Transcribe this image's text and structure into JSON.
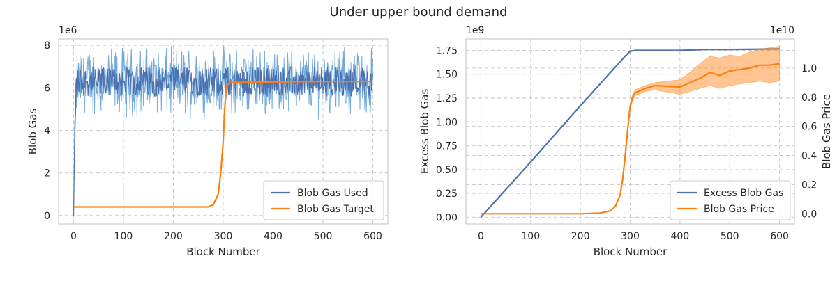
{
  "figure": {
    "suptitle": "Under upper bound demand"
  },
  "colors": {
    "blue": "#4c72b0",
    "orange": "#ff7f0e",
    "light_blue": "#5b9bd5",
    "grid": "#cccccc",
    "spine": "#cccccc"
  },
  "chart_data": [
    {
      "type": "line",
      "xlabel": "Block Number",
      "ylabel": "Blob Gas",
      "y_offset_label": "1e6",
      "xlim": [
        -30,
        630
      ],
      "ylim": [
        -0.4,
        8.3
      ],
      "xticks": [
        0,
        100,
        200,
        300,
        400,
        500,
        600
      ],
      "yticks": [
        0,
        2,
        4,
        6,
        8
      ],
      "legend": "lower-right",
      "grid": true,
      "series": [
        {
          "name": "Blob Gas Used",
          "color": "#4c72b0",
          "note_band": "noisy band around mean 6.3 (range approx 4.8 to 7.9) from block 0 to 600",
          "x": [
            0,
            2,
            5,
            10,
            20,
            50,
            100,
            150,
            200,
            250,
            300,
            350,
            400,
            450,
            500,
            550,
            600
          ],
          "y": [
            0.0,
            3.0,
            6.0,
            6.3,
            6.3,
            6.3,
            6.3,
            6.3,
            6.3,
            6.3,
            6.3,
            6.3,
            6.3,
            6.3,
            6.3,
            6.3,
            6.3
          ]
        },
        {
          "name": "Blob Gas Target",
          "color": "#ff7f0e",
          "x": [
            0,
            100,
            200,
            270,
            280,
            290,
            295,
            300,
            303,
            306,
            310,
            315,
            320,
            400,
            500,
            600
          ],
          "y": [
            0.4,
            0.4,
            0.4,
            0.4,
            0.5,
            1.0,
            2.0,
            3.5,
            5.0,
            6.0,
            6.2,
            6.25,
            6.25,
            6.28,
            6.3,
            6.3
          ]
        }
      ]
    },
    {
      "type": "line",
      "xlabel": "Block Number",
      "ylabel": "Excess Blob Gas",
      "ylabel_right": "Blob Gas Price",
      "y_offset_label": "1e9",
      "y2_offset_label": "1e10",
      "xlim": [
        -30,
        630
      ],
      "ylim": [
        -0.07,
        1.87
      ],
      "y2lim": [
        -0.07,
        1.2
      ],
      "xticks": [
        0,
        100,
        200,
        300,
        400,
        500,
        600
      ],
      "yticks": [
        0.0,
        0.25,
        0.5,
        0.75,
        1.0,
        1.25,
        1.5,
        1.75
      ],
      "y2ticks": [
        0.0,
        0.2,
        0.4,
        0.6,
        0.8,
        1.0
      ],
      "legend": "lower-right",
      "grid": true,
      "series": [
        {
          "name": "Excess Blob Gas",
          "color": "#4c72b0",
          "axis": "left",
          "x": [
            0,
            100,
            200,
            290,
            300,
            310,
            350,
            400,
            450,
            500,
            600
          ],
          "y": [
            0.0,
            0.58,
            1.17,
            1.69,
            1.74,
            1.75,
            1.75,
            1.75,
            1.76,
            1.76,
            1.765
          ]
        },
        {
          "name": "Blob Gas Price",
          "color": "#ff7f0e",
          "axis": "right",
          "x": [
            0,
            100,
            200,
            240,
            260,
            270,
            280,
            285,
            290,
            295,
            300,
            305,
            310,
            330,
            350,
            400,
            420,
            440,
            460,
            480,
            500,
            520,
            540,
            560,
            580,
            600
          ],
          "y": [
            0.0,
            0.0,
            0.0,
            0.005,
            0.02,
            0.05,
            0.13,
            0.24,
            0.4,
            0.58,
            0.74,
            0.8,
            0.83,
            0.86,
            0.88,
            0.87,
            0.9,
            0.93,
            0.97,
            0.95,
            0.98,
            0.99,
            1.0,
            1.02,
            1.02,
            1.03
          ],
          "band_lower": [
            0.0,
            0.0,
            0.0,
            0.005,
            0.02,
            0.05,
            0.12,
            0.22,
            0.37,
            0.56,
            0.72,
            0.78,
            0.81,
            0.84,
            0.85,
            0.82,
            0.84,
            0.86,
            0.88,
            0.86,
            0.88,
            0.89,
            0.9,
            0.91,
            0.9,
            0.91
          ],
          "band_upper": [
            0.0,
            0.0,
            0.0,
            0.006,
            0.022,
            0.055,
            0.14,
            0.26,
            0.43,
            0.6,
            0.76,
            0.82,
            0.85,
            0.88,
            0.9,
            0.92,
            0.97,
            1.03,
            1.08,
            1.07,
            1.09,
            1.08,
            1.11,
            1.13,
            1.14,
            1.15
          ]
        }
      ]
    }
  ]
}
